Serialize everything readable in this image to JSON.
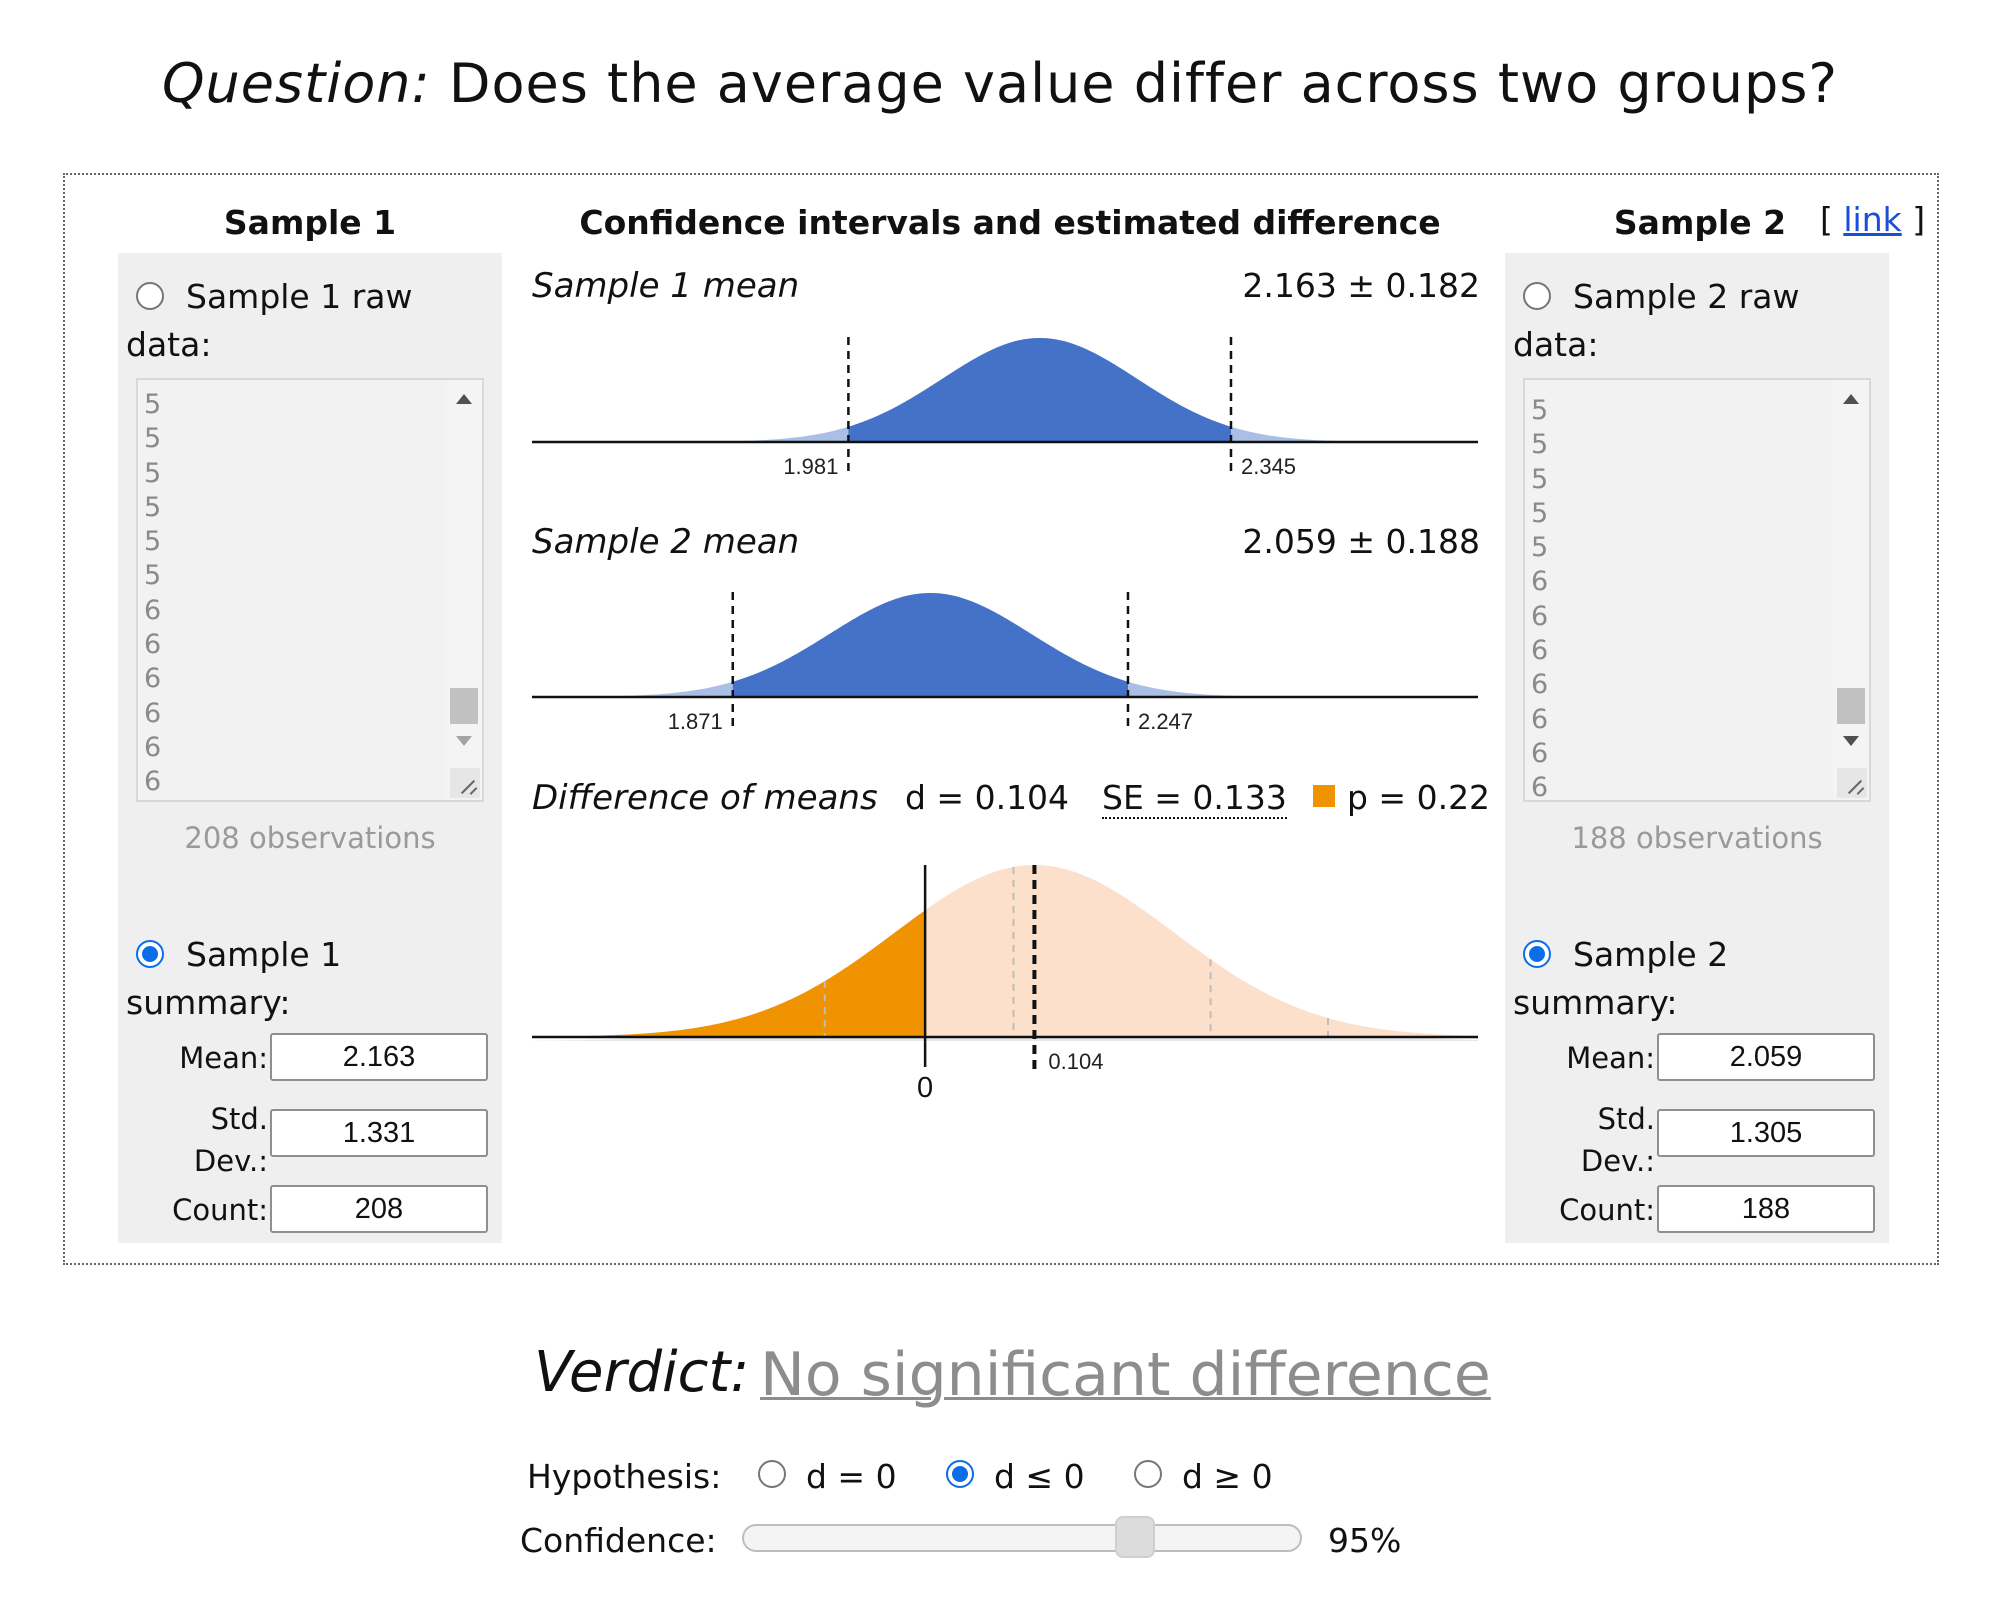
{
  "question": {
    "prefix": "Question:",
    "text": "Does the average value differ across two groups?"
  },
  "link": {
    "open": "[",
    "label": "link",
    "close": "]"
  },
  "sample1": {
    "title": "Sample 1",
    "raw_label": "Sample 1 raw data:",
    "raw_lines": [
      "5",
      "5",
      "5",
      "5",
      "5",
      "5",
      "6",
      "6",
      "6",
      "6",
      "6",
      "6"
    ],
    "observations": "208 observations",
    "summary_label": "Sample 1 summary:",
    "mean_label": "Mean:",
    "mean": "2.163",
    "sd_label": "Std. Dev.:",
    "sd": "1.331",
    "count_label": "Count:",
    "count": "208",
    "raw_selected": false,
    "summary_selected": true
  },
  "sample2": {
    "title": "Sample 2",
    "raw_label": "Sample 2 raw data:",
    "raw_lines": [
      "5",
      "5",
      "5",
      "5",
      "5",
      "6",
      "6",
      "6",
      "6",
      "6",
      "6",
      "6"
    ],
    "observations": "188 observations",
    "summary_label": "Sample 2 summary:",
    "mean_label": "Mean:",
    "mean": "2.059",
    "sd_label": "Std. Dev.:",
    "sd": "1.305",
    "count_label": "Count:",
    "count": "188",
    "raw_selected": false,
    "summary_selected": true
  },
  "center": {
    "title": "Confidence intervals and estimated difference",
    "s1_label": "Sample 1 mean",
    "s1_value": "2.163 ± 0.182",
    "s2_label": "Sample 2 mean",
    "s2_value": "2.059 ± 0.188",
    "diff_label": "Difference of means",
    "d_text": "d = 0.104",
    "se_text": "SE = 0.133",
    "p_text": "p = 0.22"
  },
  "chart_data": [
    {
      "type": "area",
      "title": "Sample 1 mean",
      "mean": 2.163,
      "margin": 0.182,
      "ci": [
        1.981,
        2.345
      ],
      "tick_labels": [
        "1.981",
        "2.345"
      ],
      "xlim": [
        1.68,
        2.58
      ]
    },
    {
      "type": "area",
      "title": "Sample 2 mean",
      "mean": 2.059,
      "margin": 0.188,
      "ci": [
        1.871,
        2.247
      ],
      "tick_labels": [
        "1.871",
        "2.247"
      ],
      "xlim": [
        1.68,
        2.58
      ]
    },
    {
      "type": "area",
      "title": "Difference of means",
      "d": 0.104,
      "se": 0.133,
      "p": 0.22,
      "tick_labels": [
        "0",
        "0.104"
      ],
      "xlim": [
        -0.374,
        0.526
      ],
      "colors": {
        "region": "#ef9300",
        "rest": "#fde0cb"
      }
    }
  ],
  "colors": {
    "ci_fill": "#4472c9",
    "ci_tail": "#a9bfe6",
    "p_region": "#ef9300",
    "rest": "#fde0cb",
    "link": "#1a4ed8",
    "radio": "#0b6ee8"
  },
  "verdict": {
    "label": "Verdict:",
    "text": "No significant difference"
  },
  "hypothesis": {
    "label": "Hypothesis:",
    "options": [
      "d = 0",
      "d ≤ 0",
      "d ≥ 0"
    ],
    "selected": 1
  },
  "confidence": {
    "label": "Confidence:",
    "value": "95%",
    "level": 0.95
  }
}
